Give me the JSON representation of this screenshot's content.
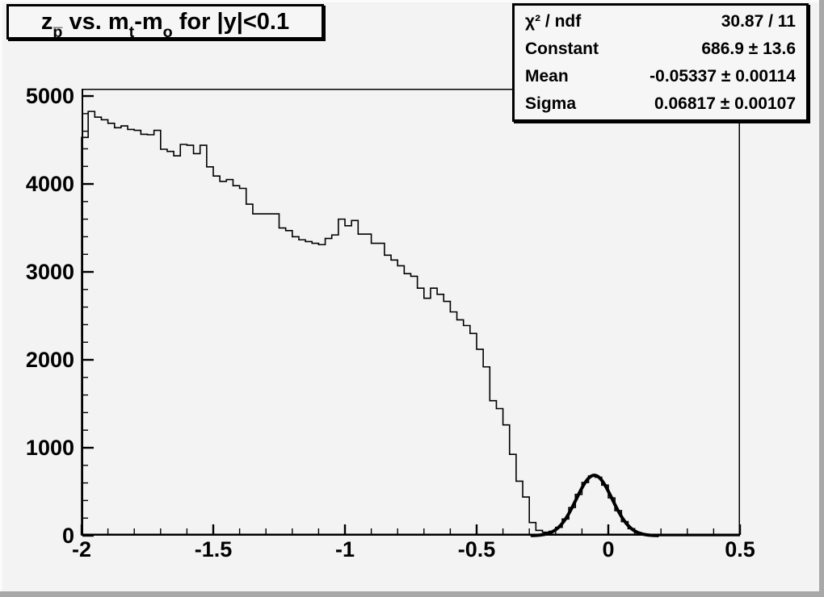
{
  "title": {
    "plain": "z_p vs. m_t-m_o for |y|<0.1",
    "segments": [
      {
        "text": "z",
        "sub": false
      },
      {
        "text": "p̅",
        "sub": true
      },
      {
        "text": " vs. m",
        "sub": false
      },
      {
        "text": "t",
        "sub": true
      },
      {
        "text": "-m",
        "sub": false
      },
      {
        "text": "o",
        "sub": true
      },
      {
        "text": " for |y|<0.1",
        "sub": false
      }
    ]
  },
  "stats": {
    "rows": [
      {
        "label": "χ² / ndf",
        "value": "30.87 / 11"
      },
      {
        "label": "Constant",
        "value": "686.9 ± 13.6"
      },
      {
        "label": "Mean",
        "value": "-0.05337 ± 0.00114"
      },
      {
        "label": "Sigma",
        "value": "0.06817 ± 0.00107"
      }
    ]
  },
  "colors": {
    "canvas_background": "#f3f3f3",
    "bevel_dark": "#a8a8a8",
    "bevel_light": "#fbfbfb",
    "box_fill": "#f6f6f6",
    "line_color": "#000000"
  },
  "chart_data": {
    "type": "bar",
    "subtype": "step-histogram",
    "title": "z_p vs. m_t-m_o for |y|<0.1",
    "xlabel": "",
    "ylabel": "",
    "xlim": [
      -2,
      0.5
    ],
    "ylim": [
      0,
      5083
    ],
    "grid": false,
    "n_bins": 100,
    "bin_start": -2.0,
    "bin_width": 0.025,
    "values": [
      4530,
      4825,
      4760,
      4730,
      4690,
      4640,
      4660,
      4620,
      4610,
      4565,
      4560,
      4610,
      4395,
      4370,
      4320,
      4450,
      4440,
      4345,
      4440,
      4195,
      4090,
      4030,
      4050,
      3980,
      3950,
      3770,
      3660,
      3660,
      3660,
      3660,
      3500,
      3470,
      3400,
      3365,
      3345,
      3325,
      3310,
      3380,
      3420,
      3600,
      3525,
      3585,
      3430,
      3430,
      3325,
      3325,
      3190,
      3135,
      3070,
      2980,
      2950,
      2815,
      2700,
      2815,
      2745,
      2665,
      2545,
      2455,
      2390,
      2300,
      2120,
      1920,
      1535,
      1445,
      1260,
      925,
      620,
      440,
      150,
      60,
      40,
      50,
      95,
      190,
      320,
      470,
      605,
      680,
      665,
      575,
      430,
      285,
      160,
      80,
      35,
      14,
      5,
      2,
      1,
      0,
      0,
      0,
      0,
      0,
      0,
      0,
      0,
      0,
      0,
      0
    ],
    "fit": {
      "type": "gaussian",
      "constant": 686.9,
      "mean": -0.05337,
      "sigma": 0.06817,
      "draw_range": [
        -0.29,
        0.19
      ]
    },
    "x_axis": {
      "major_ticks": [
        -2,
        -1.5,
        -1,
        -0.5,
        0,
        0.5
      ],
      "major_labels": [
        "-2",
        "-1.5",
        "-1",
        "-0.5",
        "0",
        "0.5"
      ],
      "minor_step": 0.1
    },
    "y_axis": {
      "major_ticks": [
        0,
        1000,
        2000,
        3000,
        4000,
        5000
      ],
      "major_labels": [
        "0",
        "1000",
        "2000",
        "3000",
        "4000",
        "5000"
      ],
      "minor_step": 200
    }
  }
}
